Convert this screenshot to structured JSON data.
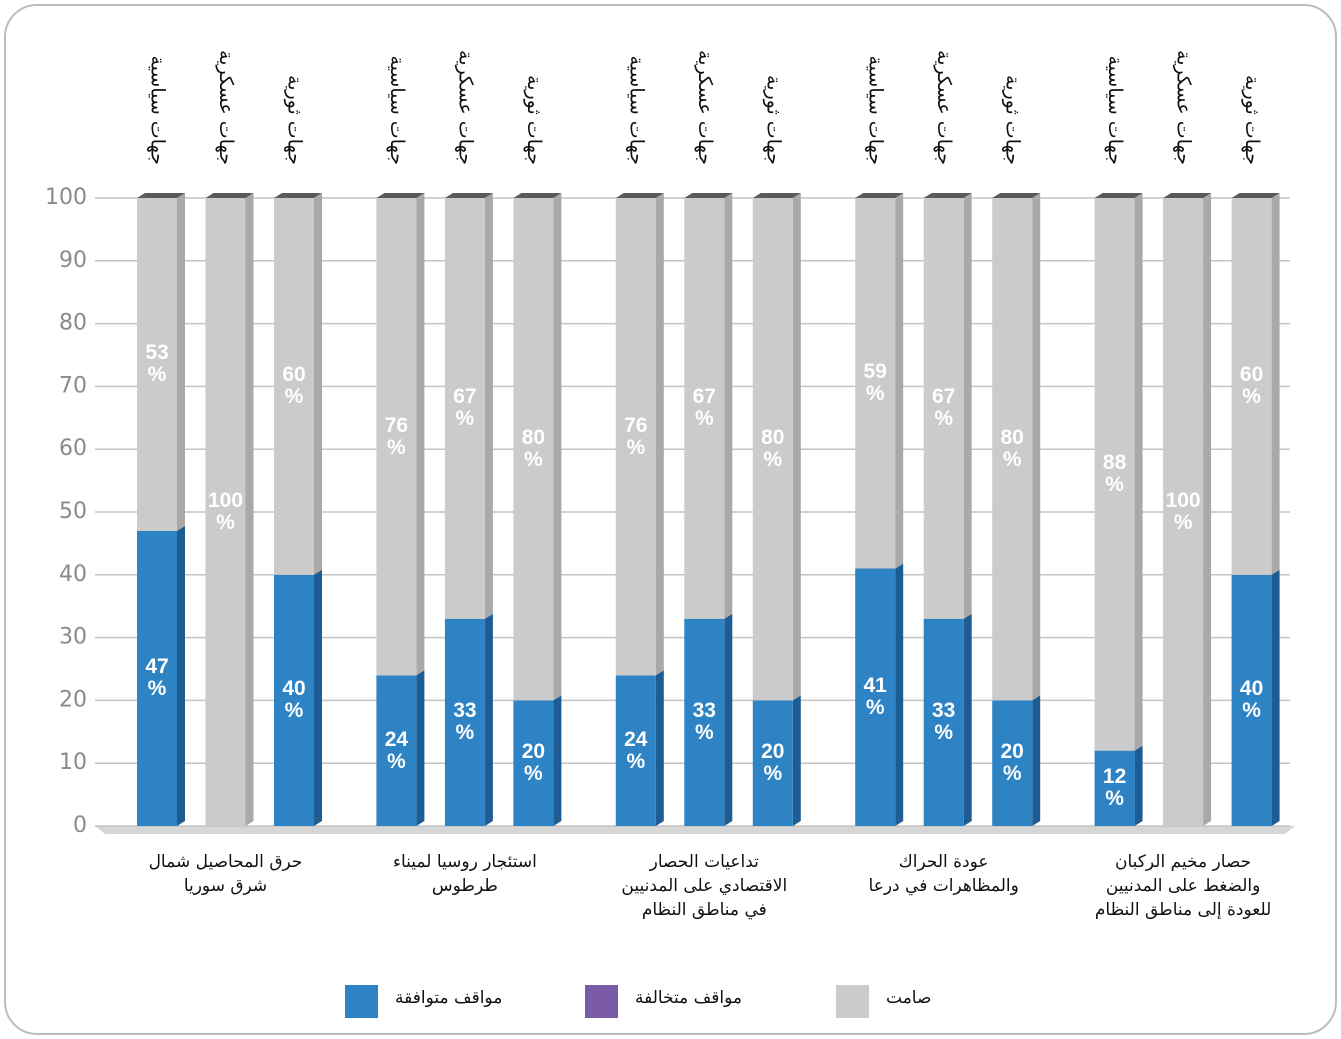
{
  "chart_data": {
    "type": "bar",
    "stacked": true,
    "groups": [
      "حرق المحاصيل شمال شرق سوريا",
      "استئجار روسيا لميناء طرطوس",
      "تداعيات الحصار الاقتصادي على المدنيين في مناطق النظام",
      "عودة الحراك والمظاهرات في درعا",
      "حصار مخيم الركبان والضغط على المدنيين للعودة إلى مناطق النظام"
    ],
    "bar_labels": [
      "جهات سياسية",
      "جهات عسكرية",
      "جهات ثورية",
      "جهات سياسية",
      "جهات عسكرية",
      "جهات ثورية",
      "جهات سياسية",
      "جهات عسكرية",
      "جهات ثورية",
      "جهات سياسية",
      "جهات عسكرية",
      "جهات ثورية",
      "جهات سياسية",
      "جهات عسكرية",
      "جهات ثورية"
    ],
    "series": [
      {
        "name": "مواقف متوافقة",
        "color": "#2e83c4",
        "side_color": "#1d5d93",
        "values": [
          47,
          0,
          40,
          24,
          33,
          20,
          24,
          33,
          20,
          41,
          33,
          20,
          12,
          0,
          40
        ],
        "value_labels": [
          "47 %",
          null,
          "40 %",
          "24 %",
          "33 %",
          "20 %",
          "24 %",
          "33 %",
          "20 %",
          "41 %",
          "33 %",
          "20 %",
          "12 %",
          null,
          "40 %"
        ]
      },
      {
        "name": "مواقف متخالفة",
        "color": "#7b5ba6",
        "side_color": "#5b4180",
        "values": [
          0,
          0,
          0,
          0,
          0,
          0,
          0,
          0,
          0,
          0,
          0,
          0,
          0,
          0,
          0
        ]
      },
      {
        "name": "صامت",
        "color": "#cbcbcb",
        "side_color": "#a9a9a9",
        "values": [
          53,
          100,
          60,
          76,
          67,
          80,
          76,
          67,
          80,
          59,
          67,
          80,
          88,
          100,
          60
        ],
        "value_labels": [
          "53 %",
          "100 %",
          "60 %",
          "76 %",
          "67 %",
          "80 %",
          "76 %",
          "67 %",
          "80 %",
          "59 %",
          "67 %",
          "80 %",
          "88 %",
          "100 %",
          "60 %"
        ]
      }
    ],
    "ylim": [
      0,
      100
    ],
    "yticks": [
      0,
      10,
      20,
      30,
      40,
      50,
      60,
      70,
      80,
      90,
      100
    ],
    "grid": true
  }
}
